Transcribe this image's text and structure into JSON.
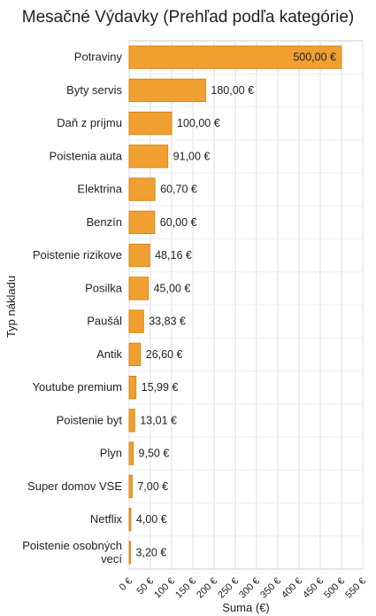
{
  "chart_data": {
    "type": "bar",
    "orientation": "horizontal",
    "title": "Mesačné Výdavky (Prehľad podľa kategórie)",
    "xlabel": "Suma (€)",
    "ylabel": "Typ nákladu",
    "xlim": [
      0,
      550
    ],
    "xticks": [
      "0 €",
      "50 €",
      "100 €",
      "150 €",
      "200 €",
      "250 €",
      "300 €",
      "350 €",
      "400 €",
      "450 €",
      "500 €",
      "550 €"
    ],
    "grid": true,
    "bar_color": "#f0a030",
    "bar_border": "#d5851c",
    "categories": [
      [
        "Potraviny"
      ],
      [
        "Byty servis"
      ],
      [
        "Daň z príjmu"
      ],
      [
        "Poistenia auta"
      ],
      [
        "Elektrina"
      ],
      [
        "Benzín"
      ],
      [
        "Poistenie rizikove"
      ],
      [
        "Posilka"
      ],
      [
        "Paušál"
      ],
      [
        "Antik"
      ],
      [
        "Youtube premium"
      ],
      [
        "Poistenie byt"
      ],
      [
        "Plyn"
      ],
      [
        "Super domov VSE"
      ],
      [
        "Netflix"
      ],
      [
        "Poistenie osobných",
        "vecí"
      ]
    ],
    "values": [
      500.0,
      180.0,
      100.0,
      91.0,
      60.7,
      60.0,
      48.16,
      45.0,
      33.83,
      26.6,
      15.99,
      13.01,
      9.5,
      7.0,
      4.0,
      3.2
    ],
    "value_labels": [
      "500,00 €",
      "180,00 €",
      "100,00 €",
      "91,00 €",
      "60,70 €",
      "60,00 €",
      "48,16 €",
      "45,00 €",
      "33,83 €",
      "26,60 €",
      "15,99 €",
      "13,01 €",
      "9,50 €",
      "7,00 €",
      "4,00 €",
      "3,20 €"
    ]
  }
}
